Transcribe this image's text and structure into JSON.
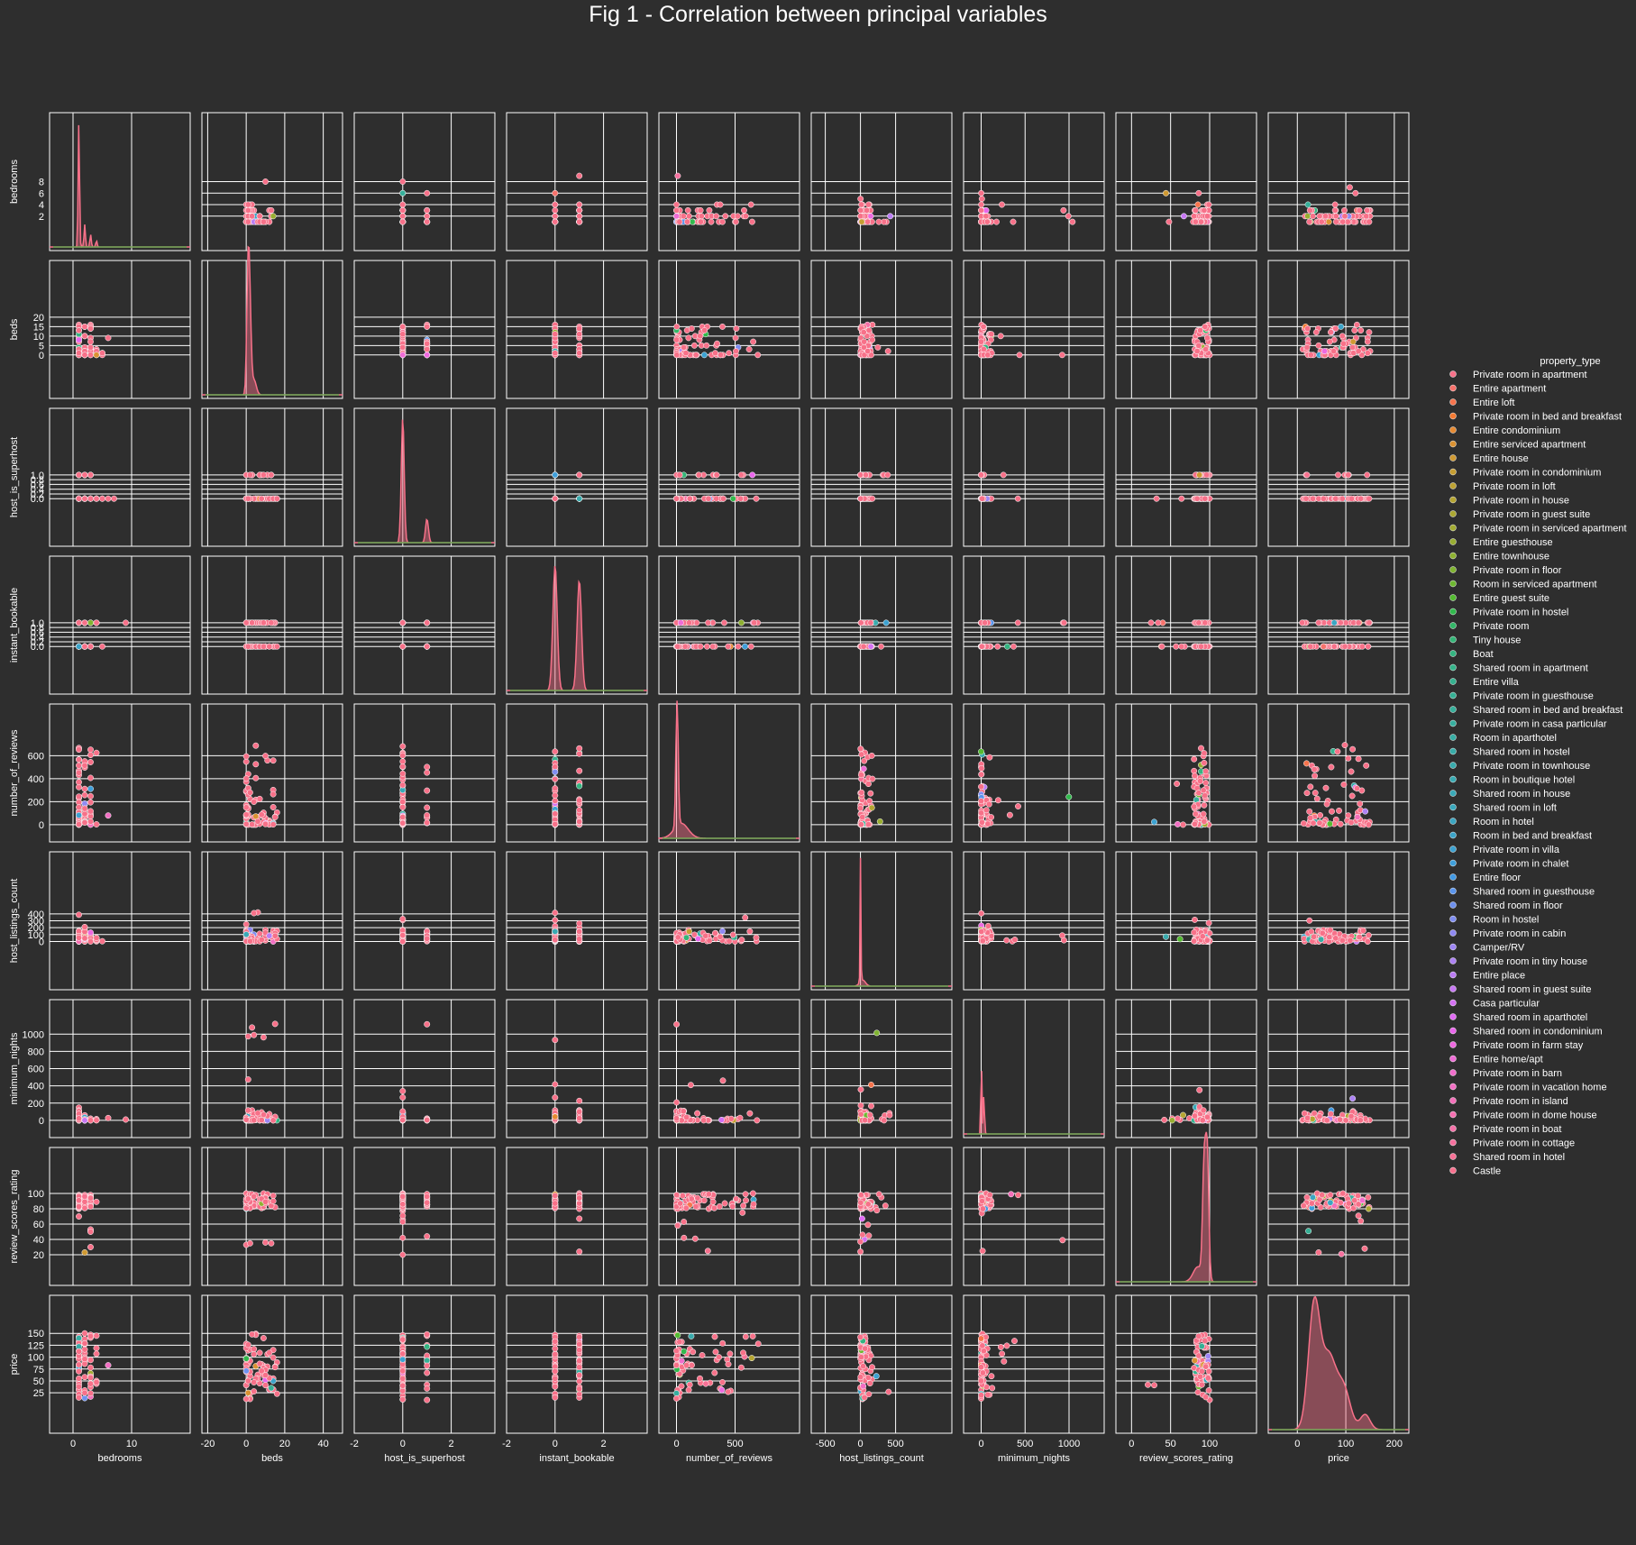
{
  "chart_data": {
    "type": "pairplot",
    "title": "Fig 1 - Correlation between principal variables",
    "variables": [
      "bedrooms",
      "beds",
      "host_is_superhost",
      "instant_bookable",
      "number_of_reviews",
      "host_listings_count",
      "minimum_nights",
      "review_scores_rating",
      "price"
    ],
    "axes": {
      "bedrooms": {
        "lim": [
          -4,
          20
        ],
        "ticks": [
          0,
          10
        ],
        "yticks": [
          2,
          4,
          6,
          8
        ]
      },
      "beds": {
        "lim": [
          -23,
          50
        ],
        "ticks": [
          -20,
          0,
          20,
          40
        ],
        "yticks": [
          0,
          5,
          10,
          15,
          20
        ]
      },
      "host_is_superhost": {
        "lim": [
          -2,
          3.8
        ],
        "ticks": [
          -2,
          0,
          2
        ],
        "yticks": [
          0.0,
          0.2,
          0.4,
          0.6,
          0.8,
          1.0
        ]
      },
      "instant_bookable": {
        "lim": [
          -2,
          3.8
        ],
        "ticks": [
          -2,
          0,
          2
        ],
        "yticks": [
          0.0,
          0.2,
          0.4,
          0.6,
          0.8,
          1.0
        ]
      },
      "number_of_reviews": {
        "lim": [
          -150,
          1050
        ],
        "ticks": [
          0,
          500
        ],
        "yticks": [
          0,
          200,
          400,
          600
        ]
      },
      "host_listings_count": {
        "lim": [
          -700,
          1300
        ],
        "ticks": [
          -500,
          0,
          500
        ],
        "yticks": [
          0,
          100,
          200,
          300,
          400
        ]
      },
      "minimum_nights": {
        "lim": [
          -200,
          1400
        ],
        "ticks": [
          0,
          500,
          1000
        ],
        "yticks": [
          0,
          200,
          400,
          600,
          800,
          1000
        ]
      },
      "review_scores_rating": {
        "lim": [
          -20,
          160
        ],
        "ticks": [
          0,
          50,
          100
        ],
        "yticks": [
          20,
          40,
          60,
          80,
          100
        ]
      },
      "price": {
        "lim": [
          -60,
          230
        ],
        "ticks": [
          0,
          100,
          200
        ],
        "yticks": [
          25,
          50,
          75,
          100,
          125,
          150
        ]
      }
    },
    "legend": {
      "title": "property_type",
      "placement": "right",
      "entries": [
        {
          "name": "Private room in apartment",
          "color": "#f77189"
        },
        {
          "name": "Entire apartment",
          "color": "#f7726c"
        },
        {
          "name": "Entire loft",
          "color": "#f7744d"
        },
        {
          "name": "Private room in bed and breakfast",
          "color": "#f47a33"
        },
        {
          "name": "Entire condominium",
          "color": "#e68a32"
        },
        {
          "name": "Entire serviced apartment",
          "color": "#da9232"
        },
        {
          "name": "Entire house",
          "color": "#cf9932"
        },
        {
          "name": "Private room in condominium",
          "color": "#c69e32"
        },
        {
          "name": "Private room in loft",
          "color": "#bda232"
        },
        {
          "name": "Private room in house",
          "color": "#b5a532"
        },
        {
          "name": "Private room in guest suite",
          "color": "#aca832"
        },
        {
          "name": "Private room in serviced apartment",
          "color": "#a3ab32"
        },
        {
          "name": "Entire guesthouse",
          "color": "#99ae32"
        },
        {
          "name": "Entire townhouse",
          "color": "#8eb131"
        },
        {
          "name": "Private room in floor",
          "color": "#80b431"
        },
        {
          "name": "Room in serviced apartment",
          "color": "#6eb831"
        },
        {
          "name": "Entire guest suite",
          "color": "#54bb31"
        },
        {
          "name": "Private room in hostel",
          "color": "#32b94d"
        },
        {
          "name": "Private room",
          "color": "#33b768"
        },
        {
          "name": "Tiny house",
          "color": "#34b577"
        },
        {
          "name": "Boat",
          "color": "#35b481"
        },
        {
          "name": "Shared room in apartment",
          "color": "#35b389"
        },
        {
          "name": "Entire villa",
          "color": "#36b18f"
        },
        {
          "name": "Private room in guesthouse",
          "color": "#36b095"
        },
        {
          "name": "Shared room in bed and breakfast",
          "color": "#37af9a"
        },
        {
          "name": "Private room in casa particular",
          "color": "#37ae9f"
        },
        {
          "name": "Room in aparthotel",
          "color": "#38ada4"
        },
        {
          "name": "Shared room in hostel",
          "color": "#38aca8"
        },
        {
          "name": "Private room in townhouse",
          "color": "#39abad"
        },
        {
          "name": "Room in boutique hotel",
          "color": "#39aab2"
        },
        {
          "name": "Shared room in house",
          "color": "#3aa9b7"
        },
        {
          "name": "Shared room in loft",
          "color": "#3aa8bc"
        },
        {
          "name": "Room in hotel",
          "color": "#3ba6c2"
        },
        {
          "name": "Room in bed and breakfast",
          "color": "#3ca4c9"
        },
        {
          "name": "Private room in villa",
          "color": "#3da2d1"
        },
        {
          "name": "Private room in chalet",
          "color": "#3f9fda"
        },
        {
          "name": "Entire floor",
          "color": "#429ae5"
        },
        {
          "name": "Shared room in guesthouse",
          "color": "#5a95ed"
        },
        {
          "name": "Shared room in floor",
          "color": "#6e91ef"
        },
        {
          "name": "Room in hostel",
          "color": "#808ef1"
        },
        {
          "name": "Private room in cabin",
          "color": "#908af3"
        },
        {
          "name": "Camper/RV",
          "color": "#9e86f4"
        },
        {
          "name": "Private room in tiny house",
          "color": "#ad82f4"
        },
        {
          "name": "Entire place",
          "color": "#bb7df4"
        },
        {
          "name": "Shared room in guest suite",
          "color": "#c878f4"
        },
        {
          "name": "Casa particular",
          "color": "#d572f4"
        },
        {
          "name": "Shared room in aparthotel",
          "color": "#e16bf4"
        },
        {
          "name": "Shared room in condominium",
          "color": "#ea66ec"
        },
        {
          "name": "Private room in farm stay",
          "color": "#ee69e0"
        },
        {
          "name": "Entire home/apt",
          "color": "#f06cd6"
        },
        {
          "name": "Private room in barn",
          "color": "#f16ecc"
        },
        {
          "name": "Private room in vacation home",
          "color": "#f26fc3"
        },
        {
          "name": "Private room in island",
          "color": "#f470ba"
        },
        {
          "name": "Private room in dome house",
          "color": "#f570b1"
        },
        {
          "name": "Private room in boat",
          "color": "#f571a8"
        },
        {
          "name": "Private room in cottage",
          "color": "#f6719f"
        },
        {
          "name": "Shared room in hotel",
          "color": "#f77196"
        },
        {
          "name": "Castle",
          "color": "#f7718e"
        }
      ]
    },
    "kde_peaks": {
      "bedrooms": [
        1,
        2,
        3
      ],
      "beds": [
        1,
        2
      ],
      "host_is_superhost": [
        0,
        1
      ],
      "instant_bookable": [
        0,
        1
      ],
      "number_of_reviews": [
        5
      ],
      "host_listings_count": [
        1
      ],
      "minimum_nights": [
        2
      ],
      "review_scores_rating": [
        93,
        97
      ],
      "price": [
        35,
        65,
        95
      ]
    },
    "grid": true,
    "style": "dark"
  }
}
